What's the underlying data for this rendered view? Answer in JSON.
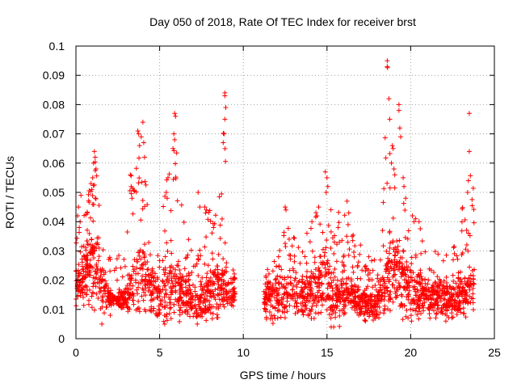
{
  "chart_data": {
    "type": "scatter",
    "title": "Day 050 of 2018, Rate Of TEC Index for receiver brst",
    "xlabel": "GPS time / hours",
    "ylabel": "ROTI / TECUs",
    "xlim": [
      0,
      25
    ],
    "ylim": [
      0,
      0.1
    ],
    "xticks": [
      0,
      5,
      10,
      15,
      20,
      25
    ],
    "xtick_labels": [
      "0",
      "5",
      "10",
      "15",
      "20",
      "25"
    ],
    "yticks": [
      0,
      0.01,
      0.02,
      0.03,
      0.04,
      0.05,
      0.06,
      0.07,
      0.08,
      0.09,
      0.1
    ],
    "ytick_labels": [
      "0",
      "0.01",
      "0.02",
      "0.03",
      "0.04",
      "0.05",
      "0.06",
      "0.07",
      "0.08",
      "0.09",
      "0.1"
    ],
    "grid": true,
    "marker": "+",
    "color": "#ff0000",
    "data_gap_hours": [
      9.5,
      11.2
    ],
    "series": [
      {
        "name": "ROTI",
        "envelope_profile": {
          "hours": [
            0,
            0.3,
            0.7,
            1.0,
            1.2,
            1.6,
            2.0,
            2.5,
            3.0,
            3.3,
            3.6,
            3.8,
            4.0,
            4.3,
            4.6,
            5.0,
            5.3,
            5.6,
            5.9,
            6.2,
            6.6,
            7.0,
            7.5,
            7.8,
            8.2,
            8.6,
            8.9,
            9.2,
            9.5,
            11.2,
            11.5,
            12.0,
            12.5,
            13.0,
            13.5,
            14.0,
            14.5,
            14.8,
            15.1,
            15.4,
            15.8,
            16.2,
            16.6,
            17.0,
            17.5,
            18.0,
            18.3,
            18.6,
            18.9,
            19.2,
            19.6,
            20.0,
            20.5,
            21.0,
            21.5,
            22.0,
            22.5,
            23.0,
            23.3,
            23.6,
            23.8
          ],
          "upper": [
            0.045,
            0.035,
            0.05,
            0.063,
            0.06,
            0.032,
            0.028,
            0.028,
            0.033,
            0.057,
            0.07,
            0.072,
            0.065,
            0.052,
            0.04,
            0.038,
            0.055,
            0.058,
            0.077,
            0.052,
            0.035,
            0.032,
            0.03,
            0.045,
            0.044,
            0.05,
            0.084,
            0.03,
            0.025,
            0.02,
            0.025,
            0.03,
            0.045,
            0.035,
            0.03,
            0.04,
            0.045,
            0.052,
            0.057,
            0.035,
            0.048,
            0.045,
            0.035,
            0.028,
            0.025,
            0.03,
            0.045,
            0.095,
            0.065,
            0.08,
            0.055,
            0.045,
            0.042,
            0.035,
            0.03,
            0.027,
            0.035,
            0.04,
            0.06,
            0.077,
            0.045
          ],
          "lower": [
            0.01,
            0.012,
            0.01,
            0.008,
            0.008,
            0.006,
            0.009,
            0.01,
            0.009,
            0.008,
            0.007,
            0.006,
            0.006,
            0.007,
            0.005,
            0.005,
            0.005,
            0.004,
            0.005,
            0.005,
            0.006,
            0.006,
            0.005,
            0.004,
            0.005,
            0.007,
            0.007,
            0.01,
            0.01,
            0.006,
            0.004,
            0.005,
            0.006,
            0.007,
            0.007,
            0.006,
            0.006,
            0.005,
            0.004,
            0.004,
            0.004,
            0.007,
            0.008,
            0.006,
            0.005,
            0.006,
            0.007,
            0.008,
            0.006,
            0.006,
            0.006,
            0.006,
            0.006,
            0.006,
            0.006,
            0.006,
            0.006,
            0.007,
            0.007,
            0.008,
            0.01
          ],
          "typical": [
            0.02,
            0.022,
            0.025,
            0.03,
            0.028,
            0.018,
            0.015,
            0.014,
            0.014,
            0.02,
            0.025,
            0.028,
            0.025,
            0.02,
            0.016,
            0.015,
            0.018,
            0.02,
            0.022,
            0.018,
            0.015,
            0.014,
            0.013,
            0.016,
            0.018,
            0.02,
            0.022,
            0.018,
            0.015,
            0.014,
            0.015,
            0.016,
            0.018,
            0.017,
            0.016,
            0.018,
            0.02,
            0.022,
            0.022,
            0.014,
            0.015,
            0.017,
            0.016,
            0.013,
            0.012,
            0.013,
            0.017,
            0.025,
            0.025,
            0.025,
            0.02,
            0.018,
            0.017,
            0.016,
            0.016,
            0.015,
            0.015,
            0.015,
            0.018,
            0.02,
            0.02
          ]
        },
        "points": [
          [
            18.6,
            0.095
          ],
          [
            18.6,
            0.093
          ],
          [
            18.7,
            0.082
          ],
          [
            18.75,
            0.075
          ],
          [
            19.3,
            0.08
          ],
          [
            19.3,
            0.078
          ],
          [
            19.35,
            0.072
          ],
          [
            19.4,
            0.069
          ],
          [
            18.9,
            0.066
          ],
          [
            18.95,
            0.065
          ],
          [
            8.9,
            0.084
          ],
          [
            8.9,
            0.083
          ],
          [
            8.95,
            0.079
          ],
          [
            8.9,
            0.075
          ],
          [
            8.85,
            0.07
          ],
          [
            8.8,
            0.067
          ],
          [
            5.9,
            0.077
          ],
          [
            5.95,
            0.076
          ],
          [
            5.85,
            0.07
          ],
          [
            5.9,
            0.068
          ],
          [
            5.8,
            0.065
          ],
          [
            4.0,
            0.074
          ],
          [
            3.7,
            0.071
          ],
          [
            3.75,
            0.07
          ],
          [
            3.9,
            0.069
          ],
          [
            4.05,
            0.067
          ],
          [
            3.8,
            0.066
          ],
          [
            4.1,
            0.062
          ],
          [
            23.5,
            0.077
          ],
          [
            23.5,
            0.064
          ],
          [
            23.45,
            0.054
          ],
          [
            23.4,
            0.05
          ],
          [
            12.5,
            0.045
          ],
          [
            12.55,
            0.044
          ],
          [
            16.2,
            0.047
          ],
          [
            16.3,
            0.043
          ],
          [
            14.9,
            0.057
          ],
          [
            15.0,
            0.055
          ],
          [
            15.05,
            0.052
          ],
          [
            14.95,
            0.05
          ],
          [
            1.1,
            0.064
          ],
          [
            1.15,
            0.062
          ],
          [
            1.05,
            0.06
          ],
          [
            1.2,
            0.058
          ],
          [
            0.9,
            0.053
          ],
          [
            0.95,
            0.051
          ],
          [
            1.0,
            0.055
          ],
          [
            5.5,
            0.055
          ],
          [
            5.4,
            0.05
          ],
          [
            5.45,
            0.048
          ],
          [
            7.3,
            0.05
          ],
          [
            7.4,
            0.045
          ],
          [
            7.7,
            0.045
          ],
          [
            7.75,
            0.043
          ],
          [
            7.8,
            0.044
          ],
          [
            3.25,
            0.056
          ],
          [
            3.3,
            0.052
          ],
          [
            3.35,
            0.048
          ],
          [
            18.85,
            0.06
          ],
          [
            19.0,
            0.058
          ],
          [
            19.05,
            0.056
          ],
          [
            19.55,
            0.055
          ],
          [
            19.6,
            0.052
          ],
          [
            19.7,
            0.048
          ],
          [
            20.1,
            0.042
          ],
          [
            20.2,
            0.04
          ],
          [
            20.3,
            0.041
          ],
          [
            20.5,
            0.04
          ],
          [
            16.5,
            0.035
          ],
          [
            17.0,
            0.032
          ],
          [
            17.5,
            0.028
          ],
          [
            0.1,
            0.042
          ],
          [
            0.15,
            0.045
          ],
          [
            0.25,
            0.04
          ],
          [
            0.3,
            0.049
          ],
          [
            0.2,
            0.038
          ],
          [
            14.5,
            0.045
          ],
          [
            14.4,
            0.042
          ],
          [
            14.1,
            0.04
          ],
          [
            13.8,
            0.036
          ],
          [
            1.55,
            0.005
          ],
          [
            2.05,
            0.008
          ],
          [
            5.3,
            0.005
          ],
          [
            7.25,
            0.005
          ],
          [
            15.25,
            0.004
          ],
          [
            15.4,
            0.004
          ],
          [
            16.9,
            0.008
          ],
          [
            17.3,
            0.006
          ],
          [
            20.05,
            0.006
          ],
          [
            21.15,
            0.007
          ],
          [
            22.1,
            0.006
          ]
        ]
      }
    ]
  }
}
